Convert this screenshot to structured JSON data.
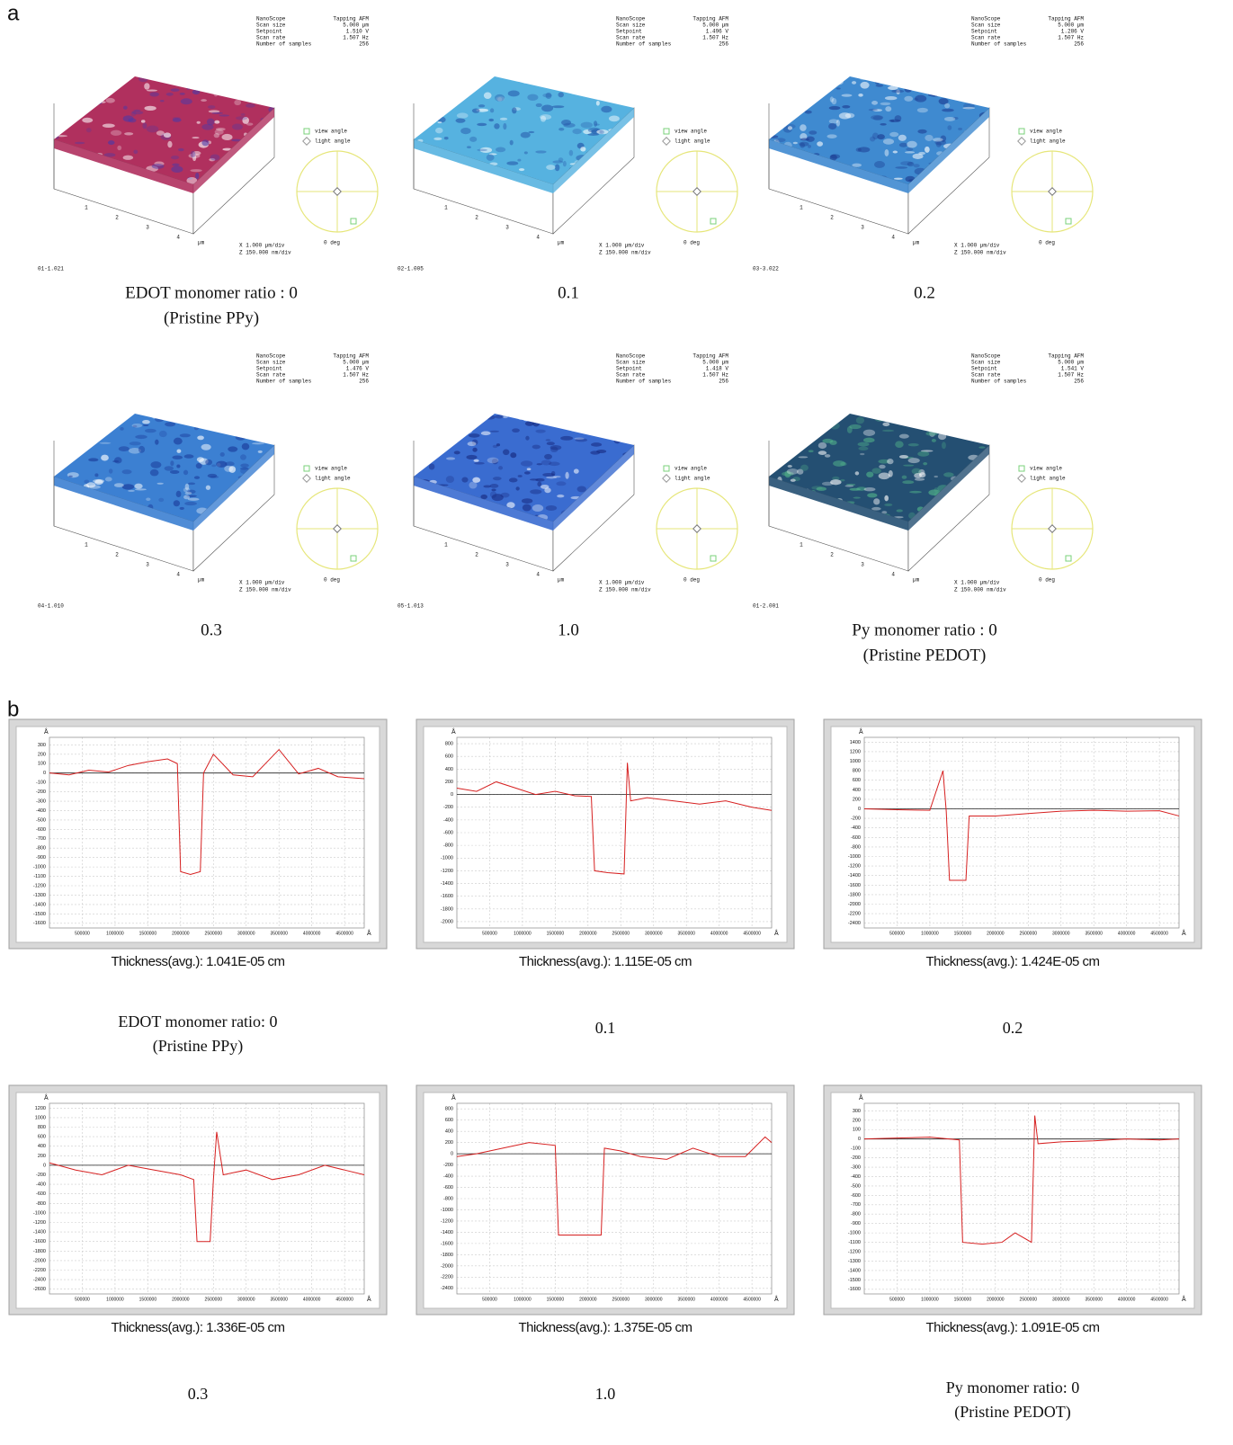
{
  "panel_a": {
    "letter": "a",
    "info_labels": [
      "NanoScope",
      "Scan size",
      "Setpoint",
      "Scan rate",
      "Number of samples"
    ],
    "mode": "Tapping AFM",
    "view_angle": "view angle",
    "light_angle": "light angle",
    "deg": "0 deg",
    "x_scale": "X 1.000 µm/div",
    "z_scale": "Z 150.000 nm/div",
    "axis_ticks": [
      "1",
      "2",
      "3",
      "4"
    ],
    "axis_unit": "µm",
    "images": [
      {
        "color": "#b0305e",
        "spot": "#4a3aa8",
        "scan_size": "5.000 µm",
        "setpoint": "1.510 V",
        "scan_rate": "1.507 Hz",
        "samples": "256",
        "file": "01-1.021",
        "caption": [
          "EDOT monomer ratio : 0",
          "(Pristine PPy)"
        ]
      },
      {
        "color": "#56b2e0",
        "spot": "#2454a8",
        "scan_size": "5.000 µm",
        "setpoint": "1.496 V",
        "scan_rate": "1.507 Hz",
        "samples": "256",
        "file": "02-1.005",
        "caption": [
          "0.1"
        ]
      },
      {
        "color": "#3f8ad0",
        "spot": "#1c3c92",
        "scan_size": "5.000 µm",
        "setpoint": "1.286 V",
        "scan_rate": "1.507 Hz",
        "samples": "256",
        "file": "03-3.022",
        "caption": [
          "0.2"
        ]
      },
      {
        "color": "#3c80d2",
        "spot": "#1a3a9a",
        "scan_size": "5.000 µm",
        "setpoint": "1.476 V",
        "scan_rate": "1.507 Hz",
        "samples": "256",
        "file": "04-1.010",
        "caption": [
          "0.3"
        ]
      },
      {
        "color": "#3a6cd0",
        "spot": "#16287e",
        "scan_size": "5.000 µm",
        "setpoint": "1.418 V",
        "scan_rate": "1.507 Hz",
        "samples": "256",
        "file": "05-1.013",
        "caption": [
          "1.0"
        ]
      },
      {
        "color": "#244f72",
        "spot": "#52b48a",
        "scan_size": "5.000 µm",
        "setpoint": "1.541 V",
        "scan_rate": "1.507 Hz",
        "samples": "256",
        "file": "01-2.001",
        "caption": [
          "Py monomer ratio : 0",
          "(Pristine PEDOT)"
        ]
      }
    ]
  },
  "panel_b": {
    "letter": "b",
    "charts": [
      {
        "type": "line",
        "color": "#d62020",
        "x_label": "Å",
        "y_label": "Å",
        "grid": true,
        "xlim": [
          0,
          4800000
        ],
        "xticks": [
          500000,
          1000000,
          1500000,
          2000000,
          2500000,
          3000000,
          3500000,
          4000000,
          4500000
        ],
        "ylim": [
          -1650,
          380
        ],
        "yticks": [
          300,
          200,
          100,
          0,
          -100,
          -200,
          -300,
          -400,
          -500,
          -600,
          -700,
          -800,
          -900,
          -1000,
          -1100,
          -1200,
          -1300,
          -1400,
          -1500,
          -1600
        ],
        "x": [
          0,
          300000,
          600000,
          900000,
          1200000,
          1500000,
          1800000,
          1950000,
          2000000,
          2150000,
          2300000,
          2350000,
          2500000,
          2800000,
          3100000,
          3500000,
          3800000,
          4100000,
          4400000,
          4800000
        ],
        "values": [
          0,
          -20,
          30,
          10,
          80,
          120,
          150,
          100,
          -1050,
          -1080,
          -1050,
          0,
          200,
          -20,
          -40,
          250,
          -10,
          50,
          -40,
          -60
        ],
        "caption": "Thickness(avg.): 1.041E-05 cm",
        "label": [
          "EDOT monomer ratio: 0",
          "(Pristine PPy)"
        ]
      },
      {
        "type": "line",
        "color": "#d62020",
        "x_label": "Å",
        "y_label": "Å",
        "grid": true,
        "xlim": [
          0,
          4800000
        ],
        "xticks": [
          500000,
          1000000,
          1500000,
          2000000,
          2500000,
          3000000,
          3500000,
          4000000,
          4500000
        ],
        "ylim": [
          -2100,
          900
        ],
        "yticks": [
          800,
          600,
          400,
          200,
          0,
          -200,
          -400,
          -600,
          -800,
          -1000,
          -1200,
          -1400,
          -1600,
          -1800,
          -2000
        ],
        "x": [
          0,
          300000,
          600000,
          900000,
          1200000,
          1500000,
          1800000,
          2050000,
          2100000,
          2300000,
          2550000,
          2600000,
          2650000,
          2900000,
          3300000,
          3700000,
          4100000,
          4500000,
          4800000
        ],
        "values": [
          100,
          50,
          200,
          100,
          0,
          50,
          -20,
          -30,
          -1200,
          -1230,
          -1250,
          500,
          -100,
          -50,
          -100,
          -150,
          -100,
          -200,
          -250
        ],
        "caption": "Thickness(avg.): 1.115E-05 cm",
        "label": [
          "0.1"
        ]
      },
      {
        "type": "line",
        "color": "#d62020",
        "x_label": "Å",
        "y_label": "Å",
        "grid": true,
        "xlim": [
          0,
          4800000
        ],
        "xticks": [
          500000,
          1000000,
          1500000,
          2000000,
          2500000,
          3000000,
          3500000,
          4000000,
          4500000
        ],
        "ylim": [
          -2500,
          1500
        ],
        "yticks": [
          1400,
          1200,
          1000,
          800,
          600,
          400,
          200,
          0,
          -200,
          -400,
          -600,
          -800,
          -1000,
          -1200,
          -1400,
          -1600,
          -1800,
          -2000,
          -2200,
          -2400
        ],
        "x": [
          0,
          500000,
          1000000,
          1200000,
          1250000,
          1300000,
          1550000,
          1600000,
          2000000,
          2500000,
          3000000,
          3500000,
          4000000,
          4500000,
          4800000
        ],
        "values": [
          0,
          -20,
          -30,
          800,
          -50,
          -1500,
          -1500,
          -150,
          -150,
          -100,
          -50,
          -30,
          -50,
          -40,
          -150
        ],
        "caption": "Thickness(avg.): 1.424E-05 cm",
        "label": [
          "0.2"
        ]
      },
      {
        "type": "line",
        "color": "#d62020",
        "x_label": "Å",
        "y_label": "Å",
        "grid": true,
        "xlim": [
          0,
          4800000
        ],
        "xticks": [
          500000,
          1000000,
          1500000,
          2000000,
          2500000,
          3000000,
          3500000,
          4000000,
          4500000
        ],
        "ylim": [
          -2700,
          1300
        ],
        "yticks": [
          1200,
          1000,
          800,
          600,
          400,
          200,
          0,
          -200,
          -400,
          -600,
          -800,
          -1000,
          -1200,
          -1400,
          -1600,
          -1800,
          -2000,
          -2200,
          -2400,
          -2600
        ],
        "x": [
          0,
          400000,
          800000,
          1200000,
          1600000,
          2000000,
          2200000,
          2250000,
          2450000,
          2500000,
          2550000,
          2650000,
          3000000,
          3400000,
          3800000,
          4200000,
          4500000,
          4800000
        ],
        "values": [
          50,
          -100,
          -200,
          0,
          -100,
          -200,
          -300,
          -1600,
          -1600,
          -300,
          700,
          -200,
          -100,
          -300,
          -200,
          0,
          -100,
          -200
        ],
        "caption": "Thickness(avg.): 1.336E-05 cm",
        "label": [
          "0.3"
        ]
      },
      {
        "type": "line",
        "color": "#d62020",
        "x_label": "Å",
        "y_label": "Å",
        "grid": true,
        "xlim": [
          0,
          4800000
        ],
        "xticks": [
          500000,
          1000000,
          1500000,
          2000000,
          2500000,
          3000000,
          3500000,
          4000000,
          4500000
        ],
        "ylim": [
          -2500,
          900
        ],
        "yticks": [
          800,
          600,
          400,
          200,
          0,
          -200,
          -400,
          -600,
          -800,
          -1000,
          -1200,
          -1400,
          -1600,
          -1800,
          -2000,
          -2200,
          -2400
        ],
        "x": [
          0,
          300000,
          700000,
          1100000,
          1500000,
          1550000,
          1900000,
          2200000,
          2250000,
          2500000,
          2800000,
          3200000,
          3600000,
          4000000,
          4400000,
          4700000,
          4800000
        ],
        "values": [
          -50,
          0,
          100,
          200,
          150,
          -1450,
          -1450,
          -1450,
          100,
          50,
          -50,
          -100,
          100,
          -50,
          -50,
          300,
          200
        ],
        "caption": "Thickness(avg.): 1.375E-05 cm",
        "label": [
          "1.0"
        ]
      },
      {
        "type": "line",
        "color": "#d62020",
        "x_label": "Å",
        "y_label": "Å",
        "grid": true,
        "xlim": [
          0,
          4800000
        ],
        "xticks": [
          500000,
          1000000,
          1500000,
          2000000,
          2500000,
          3000000,
          3500000,
          4000000,
          4500000
        ],
        "ylim": [
          -1650,
          380
        ],
        "yticks": [
          300,
          200,
          100,
          0,
          -100,
          -200,
          -300,
          -400,
          -500,
          -600,
          -700,
          -800,
          -900,
          -1000,
          -1100,
          -1200,
          -1300,
          -1400,
          -1500,
          -1600
        ],
        "x": [
          0,
          500000,
          1000000,
          1450000,
          1500000,
          1800000,
          2100000,
          2300000,
          2550000,
          2600000,
          2650000,
          3000000,
          3500000,
          4000000,
          4500000,
          4800000
        ],
        "values": [
          0,
          10,
          20,
          -10,
          -1100,
          -1120,
          -1100,
          -1000,
          -1100,
          250,
          -50,
          -30,
          -20,
          0,
          -10,
          0
        ],
        "caption": "Thickness(avg.): 1.091E-05 cm",
        "label": [
          "Py monomer ratio: 0",
          "(Pristine PEDOT)"
        ]
      }
    ]
  }
}
